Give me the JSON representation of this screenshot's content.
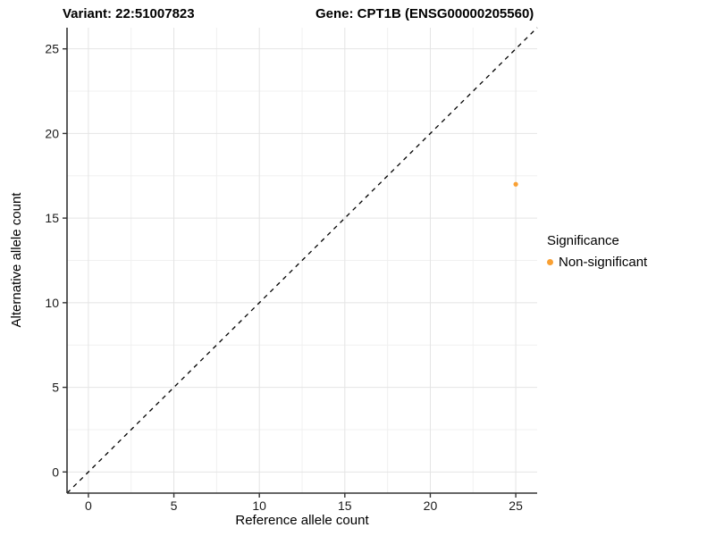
{
  "page": {
    "background": "#FFFFFF"
  },
  "header": {
    "title_left": "Variant: 22:51007823",
    "title_right": "Gene: CPT1B (ENSG00000205560)"
  },
  "chart_data": {
    "type": "scatter",
    "title": "Variant: 22:51007823 | Gene: CPT1B (ENSG00000205560)",
    "xlabel": "Reference allele count",
    "ylabel": "Alternative allele count",
    "xlim": [
      -1.25,
      26.25
    ],
    "ylim": [
      -1.25,
      26.25
    ],
    "x_ticks": [
      0,
      5,
      10,
      15,
      20,
      25
    ],
    "y_ticks": [
      0,
      5,
      10,
      15,
      20,
      25
    ],
    "grid": "on",
    "minor_grid": "on",
    "identity_line": {
      "style": "dashed",
      "color": "#000000",
      "x1": -1.25,
      "y1": -1.25,
      "x2": 26.25,
      "y2": 26.25
    },
    "series": [
      {
        "name": "Non-significant",
        "color": "#F9A033",
        "points": [
          {
            "x": 25,
            "y": 17
          }
        ]
      }
    ],
    "legend": {
      "title": "Significance",
      "position": "right",
      "items": [
        {
          "label": "Non-significant",
          "color": "#F9A033"
        }
      ]
    },
    "colors": {
      "grid_major": "#E4E4E4",
      "grid_minor": "#F0F0F0",
      "axis": "#333333",
      "text": "#000000",
      "point": "#F9A033"
    }
  }
}
